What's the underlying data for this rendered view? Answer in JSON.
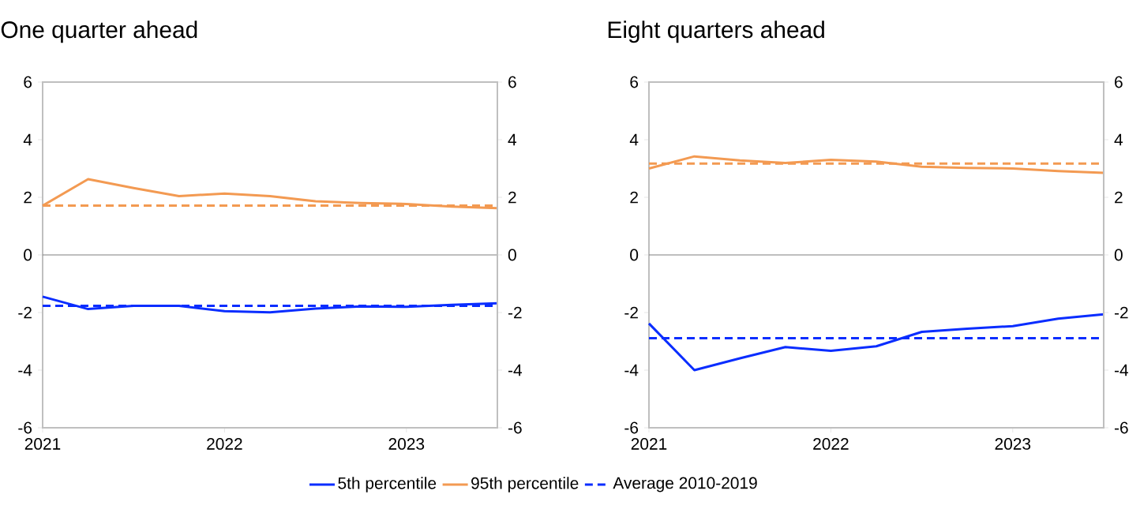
{
  "chart_data": [
    {
      "type": "line",
      "title": "One quarter ahead",
      "legend": "bottom",
      "x": [
        "2021-01",
        "2021-04",
        "2021-07",
        "2021-10",
        "2022-01",
        "2022-04",
        "2022-07",
        "2022-10",
        "2023-01",
        "2023-04",
        "2023-07"
      ],
      "series": [
        {
          "name": "5th percentile",
          "color": "#0a2dff",
          "line_style": "solid",
          "values": [
            -1.45,
            -1.88,
            -1.77,
            -1.77,
            -1.95,
            -1.99,
            -1.86,
            -1.79,
            -1.8,
            -1.73,
            -1.68
          ]
        },
        {
          "name": "95th percentile",
          "color": "#f39a52",
          "line_style": "solid",
          "values": [
            1.71,
            2.63,
            2.32,
            2.04,
            2.13,
            2.04,
            1.86,
            1.8,
            1.77,
            1.68,
            1.62
          ]
        }
      ],
      "ref_lines": [
        {
          "axis": "y",
          "value": 0,
          "color": "#7f7f7f",
          "line_style": "solid"
        },
        {
          "axis": "y",
          "value": -1.77,
          "color": "#0a2dff",
          "line_style": "dashed",
          "label": "Average 2010-2019"
        },
        {
          "axis": "y",
          "value": 1.71,
          "color": "#f39a52",
          "line_style": "dashed"
        }
      ],
      "xlim": [
        "2021",
        "2023-07"
      ],
      "xticks": [
        "2021",
        "2022",
        "2023"
      ],
      "ylim": [
        -6,
        6
      ],
      "yticks": [
        -6,
        -4,
        -2,
        0,
        2,
        4,
        6
      ],
      "y2lim": [
        -6,
        6
      ],
      "y2ticks": [
        -6,
        -4,
        -2,
        0,
        2,
        4,
        6
      ]
    },
    {
      "type": "line",
      "title": "Eight quarters ahead",
      "x": [
        "2021-01",
        "2021-04",
        "2021-07",
        "2021-10",
        "2022-01",
        "2022-04",
        "2022-07",
        "2022-10",
        "2023-01",
        "2023-04",
        "2023-07"
      ],
      "series": [
        {
          "color": "#0a2dff",
          "line_style": "solid",
          "values": [
            -2.38,
            -4.0,
            -3.59,
            -3.2,
            -3.33,
            -3.17,
            -2.67,
            -2.56,
            -2.47,
            -2.21,
            -2.06
          ]
        },
        {
          "color": "#f39a52",
          "line_style": "solid",
          "values": [
            3.0,
            3.42,
            3.28,
            3.19,
            3.3,
            3.24,
            3.06,
            3.02,
            3.0,
            2.91,
            2.85
          ]
        }
      ],
      "ref_lines": [
        {
          "axis": "y",
          "value": 0,
          "color": "#7f7f7f",
          "line_style": "solid"
        },
        {
          "axis": "y",
          "value": -2.89,
          "color": "#0a2dff",
          "line_style": "dashed"
        },
        {
          "axis": "y",
          "value": 3.17,
          "color": "#f39a52",
          "line_style": "dashed"
        }
      ],
      "xlim": [
        "2021",
        "2023-07"
      ],
      "xticks": [
        "2021",
        "2022",
        "2023"
      ],
      "ylim": [
        -6,
        6
      ],
      "yticks": [
        -6,
        -4,
        -2,
        0,
        2,
        4,
        6
      ],
      "y2lim": [
        -6,
        6
      ],
      "y2ticks": [
        -6,
        -4,
        -2,
        0,
        2,
        4,
        6
      ]
    }
  ]
}
